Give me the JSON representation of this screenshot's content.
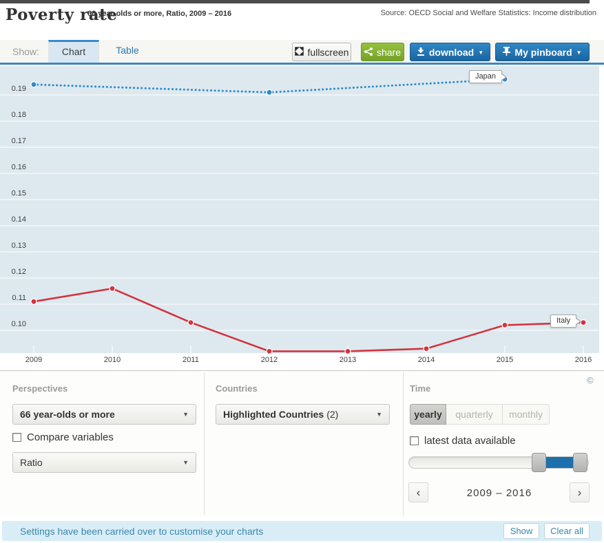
{
  "header": {
    "title": "Poverty rate",
    "subtitle": "66 year-olds or more, Ratio, 2009 – 2016",
    "source": "Source: OECD Social and Welfare Statistics: Income distribution"
  },
  "toolbar": {
    "show_label": "Show:",
    "tabs": [
      {
        "label": "Chart",
        "active": true
      },
      {
        "label": "Table",
        "active": false
      }
    ],
    "fullscreen_label": "fullscreen",
    "share_label": "share",
    "download_label": "download",
    "pinboard_label": "My pinboard",
    "caret": "▼"
  },
  "chart_data": {
    "type": "line",
    "title": "Poverty rate, 66 year-olds or more, Ratio, 2009 – 2016",
    "x_ticks": [
      2009,
      2010,
      2011,
      2012,
      2013,
      2014,
      2015,
      2016
    ],
    "y_ticks": [
      0.1,
      0.11,
      0.12,
      0.13,
      0.14,
      0.15,
      0.16,
      0.17,
      0.18,
      0.19
    ],
    "ylim": [
      0.091,
      0.201
    ],
    "xlim": [
      2009,
      2016
    ],
    "legend_position": "inline-callouts",
    "grid": "horizontal",
    "plot_bg": "#dee9ef",
    "grid_color": "#ffffff",
    "series": [
      {
        "name": "Japan",
        "color": "#2e8ccb",
        "style": "dotted",
        "points": [
          [
            2009,
            0.194
          ],
          [
            2012,
            0.191
          ],
          [
            2015,
            0.196
          ]
        ]
      },
      {
        "name": "Italy",
        "color": "#d2343f",
        "style": "solid",
        "points": [
          [
            2009,
            0.111
          ],
          [
            2010,
            0.116
          ],
          [
            2011,
            0.103
          ],
          [
            2012,
            0.092
          ],
          [
            2013,
            0.092
          ],
          [
            2014,
            0.093
          ],
          [
            2015,
            0.102
          ],
          [
            2016,
            0.103
          ]
        ]
      }
    ],
    "callouts": {
      "japan": "Japan",
      "italy": "Italy"
    }
  },
  "controls": {
    "perspectives": {
      "heading": "Perspectives",
      "variable_select": "66 year-olds or more",
      "compare_checkbox": "Compare variables",
      "measure_select": "Ratio",
      "select_arrow": "▼"
    },
    "countries": {
      "heading": "Countries",
      "select_bold": "Highlighted Countries",
      "select_count": "(2)",
      "select_arrow": "▼"
    },
    "time": {
      "heading": "Time",
      "copyright": "©",
      "frequency": [
        {
          "label": "yearly",
          "active": true
        },
        {
          "label": "quarterly",
          "active": false
        },
        {
          "label": "monthly",
          "active": false
        }
      ],
      "latest_checkbox": "latest data available",
      "range_label": "2009 – 2016",
      "prev": "‹",
      "next": "›"
    }
  },
  "footer": {
    "message": "Settings have been carried over to customise your charts",
    "show_button": "Show",
    "clear_button": "Clear all"
  }
}
